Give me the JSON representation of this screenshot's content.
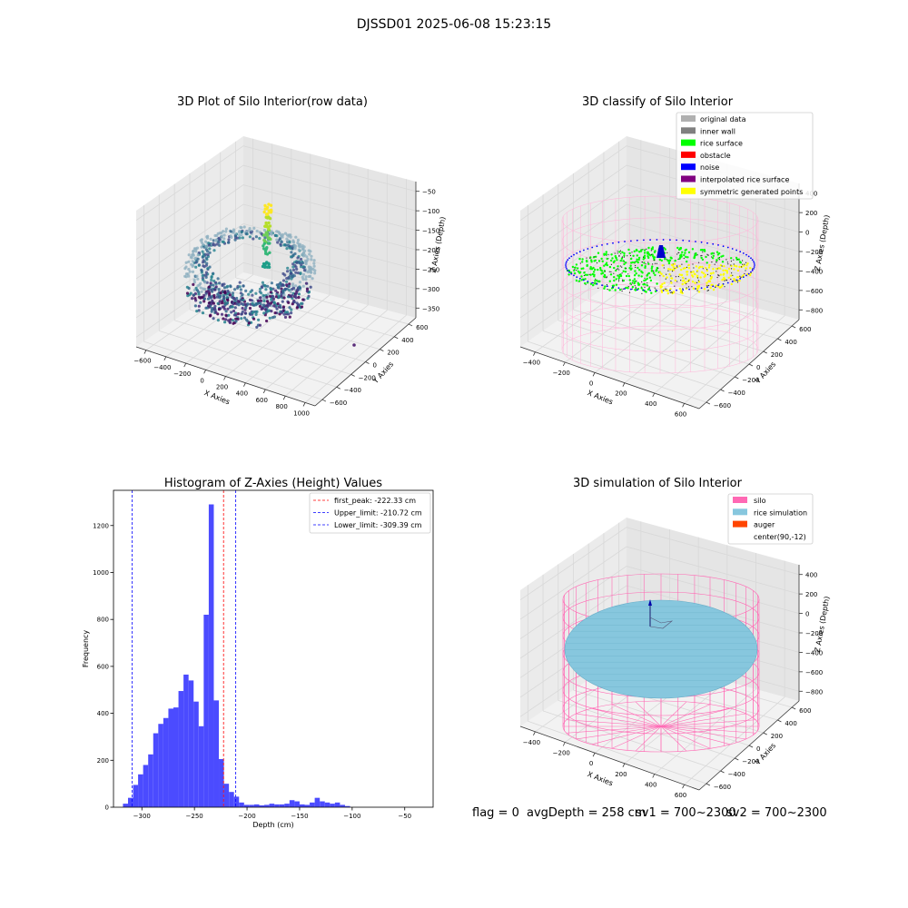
{
  "figure_title": "DJSSD01 2025-06-08 15:23:15",
  "status": {
    "flag": "flag = 0",
    "avg_depth": "avgDepth = 258 cm",
    "sv1": "sv1 = 700~2300",
    "sv2": "sv2 = 700~2300"
  },
  "colors": {
    "hist_bar": "#4b4bff",
    "first_peak": "#ff0000",
    "limit_lines": "#0000ff",
    "pane": "#f2f2f2",
    "grid": "#d8d8d8",
    "silo_wire": "#ff69b4",
    "rice_sim": "#87c7de",
    "auger": "#ff4500"
  },
  "chart_data": [
    {
      "type": "scatter",
      "title": "3D Plot of Silo Interior(row data)",
      "xlabel": "X Axies",
      "ylabel": "Y Axies",
      "zlabel": "Z Axies (Depth)",
      "x_ticks": [
        "−600",
        "−400",
        "−200",
        "0",
        "200",
        "400",
        "600",
        "800",
        "1000"
      ],
      "y_ticks": [
        "−600",
        "−400",
        "−200",
        "0",
        "200",
        "400",
        "600"
      ],
      "z_ticks": [
        "−50",
        "−100",
        "−150",
        "−200",
        "−250",
        "−300",
        "−350"
      ],
      "colormap": "viridis"
    },
    {
      "type": "scatter",
      "title": "3D classify of Silo Interior",
      "xlabel": "X Axies",
      "ylabel": "Y Axies",
      "zlabel": "Z Axies (Depth)",
      "x_ticks": [
        "−400",
        "−200",
        "0",
        "200",
        "400",
        "600"
      ],
      "y_ticks": [
        "−600",
        "−400",
        "−200",
        "0",
        "200",
        "400",
        "600"
      ],
      "z_ticks": [
        "400",
        "200",
        "0",
        "−200",
        "−400",
        "−600",
        "−800"
      ],
      "legend": [
        {
          "label": "original data",
          "color": "#b0b0b0"
        },
        {
          "label": "inner wall",
          "color": "#808080"
        },
        {
          "label": "rice surface",
          "color": "#00ff00"
        },
        {
          "label": "obstacle",
          "color": "#ff0000"
        },
        {
          "label": "noise",
          "color": "#0000ff"
        },
        {
          "label": "interpolated rice surface",
          "color": "#800080"
        },
        {
          "label": "symmetric generated points",
          "color": "#ffff00"
        }
      ]
    },
    {
      "type": "bar",
      "title": "Histogram of Z-Axies (Height) Values",
      "xlabel": "Depth (cm)",
      "ylabel": "Frequency",
      "xlim": [
        -327,
        -23
      ],
      "ylim": [
        0,
        1350
      ],
      "x_ticks": [
        -300,
        -250,
        -200,
        -150,
        -100,
        -50
      ],
      "x_tick_labels": [
        "−300",
        "−250",
        "−200",
        "−150",
        "−100",
        "−50"
      ],
      "y_ticks": [
        0,
        200,
        400,
        600,
        800,
        1000,
        1200
      ],
      "bin_start": -318,
      "bin_width": 4.8,
      "values": [
        15,
        40,
        95,
        140,
        180,
        225,
        315,
        355,
        380,
        420,
        425,
        495,
        565,
        540,
        450,
        345,
        820,
        1290,
        455,
        205,
        100,
        65,
        45,
        20,
        10,
        10,
        12,
        8,
        10,
        15,
        12,
        12,
        15,
        30,
        25,
        12,
        10,
        20,
        40,
        25,
        20,
        15,
        20,
        10,
        5
      ],
      "vlines": [
        {
          "label": "first_peak: -222.33 cm",
          "x": -222.33,
          "color": "#ff0000"
        },
        {
          "label": "Upper_limit: -210.72 cm",
          "x": -210.72,
          "color": "#0000ff"
        },
        {
          "label": "Lower_limit: -309.39 cm",
          "x": -309.39,
          "color": "#0000ff"
        }
      ],
      "legend_position": "top-right"
    },
    {
      "type": "surface",
      "title": "3D simulation of Silo Interior",
      "xlabel": "X Axies",
      "ylabel": "Y Axies",
      "zlabel": "Z Axies (Depth)",
      "x_ticks": [
        "−400",
        "−200",
        "0",
        "200",
        "400",
        "600"
      ],
      "y_ticks": [
        "−600",
        "−400",
        "−200",
        "0",
        "200",
        "400",
        "600"
      ],
      "z_ticks": [
        "400",
        "200",
        "0",
        "−200",
        "−400",
        "−600",
        "−800"
      ],
      "legend": [
        {
          "label": "silo",
          "color": "#ff69b4"
        },
        {
          "label": "rice simulation",
          "color": "#87c7de"
        },
        {
          "label": "auger",
          "color": "#ff4500"
        },
        {
          "label": "center(90,-12)",
          "color": "#ffffff"
        }
      ]
    }
  ]
}
